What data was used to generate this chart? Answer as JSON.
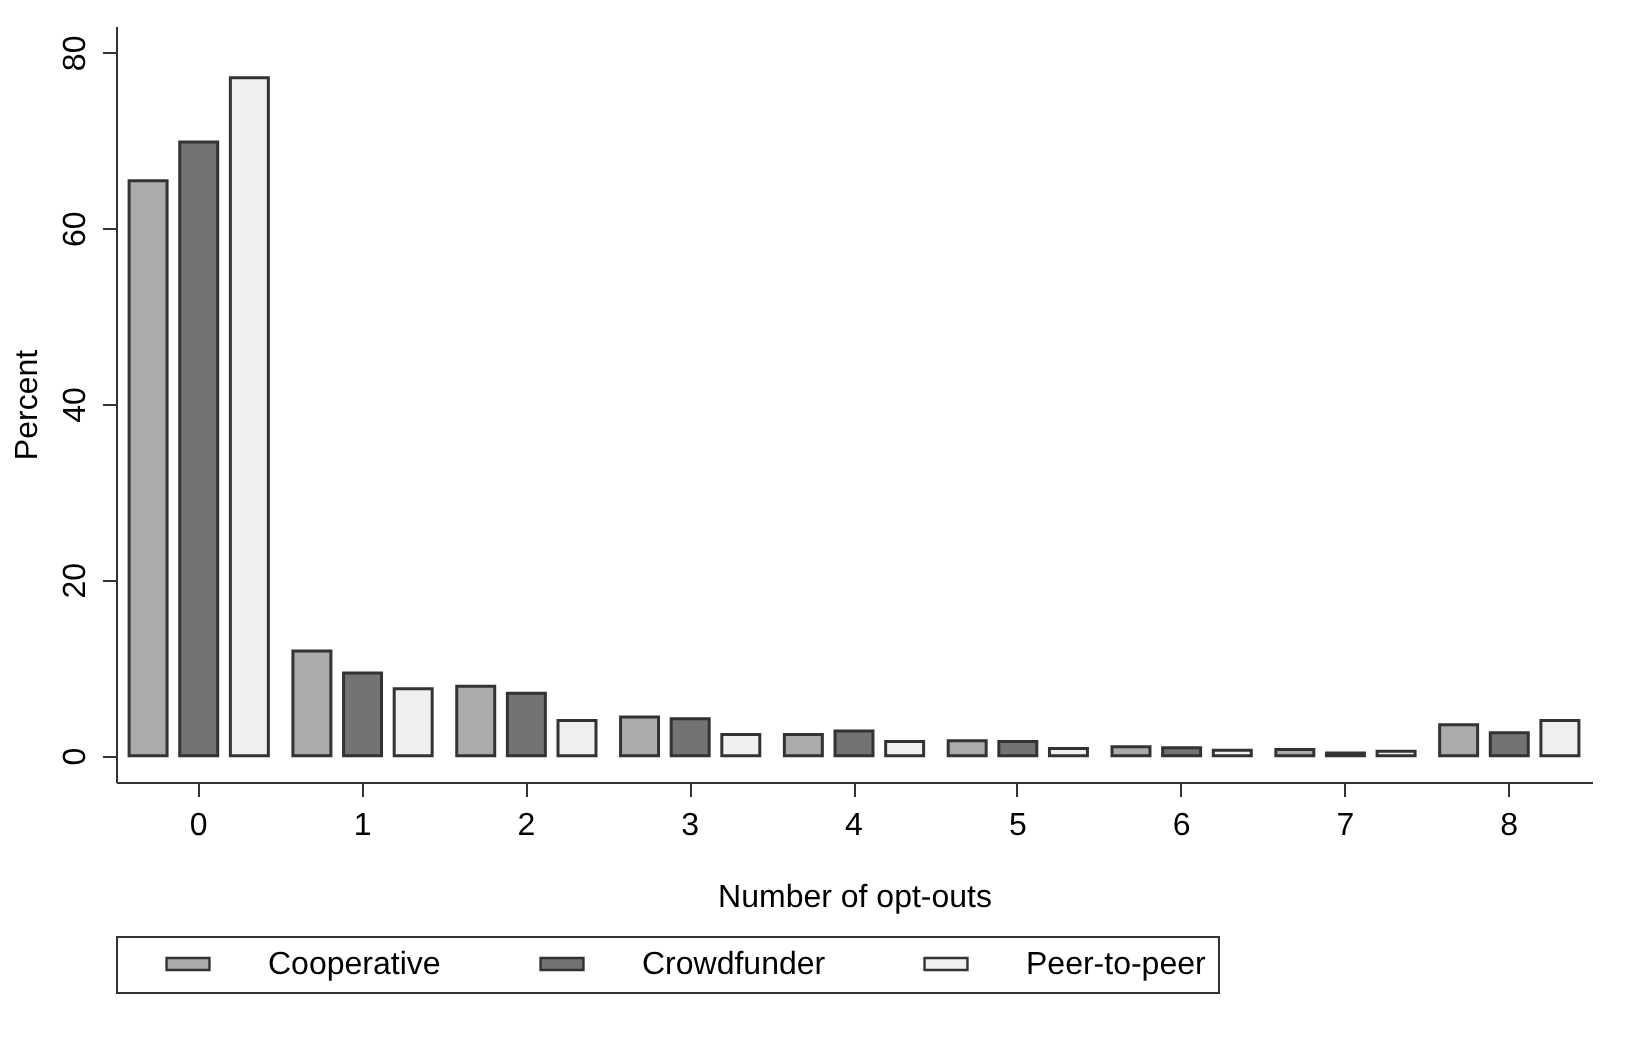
{
  "chart_data": {
    "type": "bar",
    "xlabel": "Number of opt-outs",
    "ylabel": "Percent",
    "categories": [
      "0",
      "1",
      "2",
      "3",
      "4",
      "5",
      "6",
      "7",
      "8"
    ],
    "series": [
      {
        "name": "Cooperative",
        "color": "#ababab",
        "values": [
          65.4,
          11.9,
          7.9,
          4.4,
          2.4,
          1.7,
          1.0,
          0.7,
          3.5
        ]
      },
      {
        "name": "Crowdfunder",
        "color": "#737373",
        "values": [
          69.8,
          9.4,
          7.1,
          4.2,
          2.8,
          1.6,
          0.9,
          0.3,
          2.6
        ]
      },
      {
        "name": "Peer-to-peer",
        "color": "#f0f0f0",
        "values": [
          77.1,
          7.6,
          4.0,
          2.4,
          1.6,
          0.8,
          0.6,
          0.5,
          4.0
        ]
      }
    ],
    "ylim": [
      -3,
      83
    ],
    "yticks": [
      0,
      20,
      40,
      60,
      80
    ],
    "grid": false,
    "legend": "bottom"
  }
}
